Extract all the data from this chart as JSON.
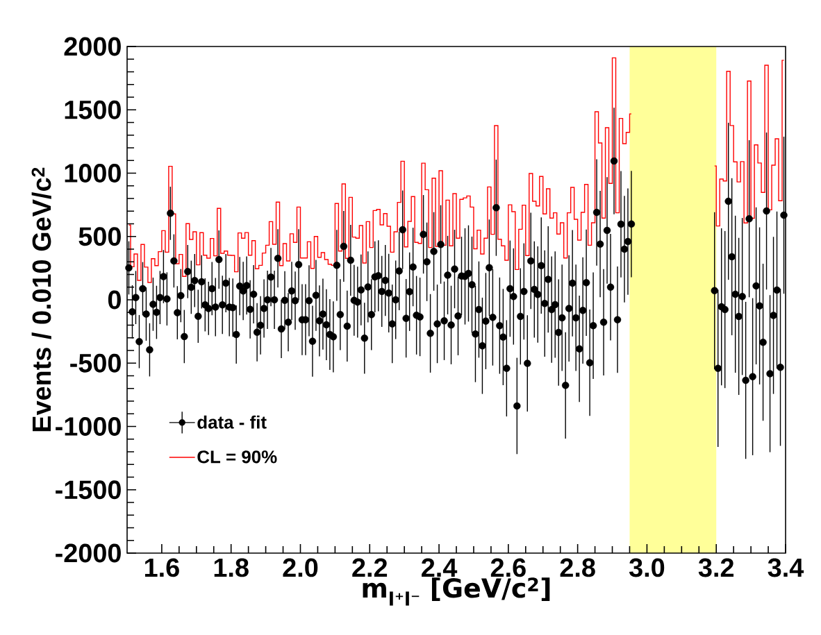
{
  "chart_data": {
    "type": "scatter",
    "xlabel": "m$_{l⁺l⁻}$ [GeV/c$^{2}$]",
    "ylabel": "Events / 0.010 GeV/c$^{2}$",
    "x": [
      1.505,
      1.515,
      1.525,
      1.535,
      1.545,
      1.555,
      1.565,
      1.575,
      1.585,
      1.595,
      1.605,
      1.615,
      1.625,
      1.635,
      1.645,
      1.655,
      1.665,
      1.675,
      1.685,
      1.695,
      1.705,
      1.715,
      1.725,
      1.735,
      1.745,
      1.755,
      1.765,
      1.775,
      1.785,
      1.795,
      1.805,
      1.815,
      1.825,
      1.835,
      1.845,
      1.855,
      1.865,
      1.875,
      1.885,
      1.895,
      1.905,
      1.915,
      1.925,
      1.935,
      1.945,
      1.955,
      1.965,
      1.975,
      1.985,
      1.995,
      2.005,
      2.015,
      2.025,
      2.035,
      2.045,
      2.055,
      2.065,
      2.075,
      2.085,
      2.095,
      2.105,
      2.115,
      2.125,
      2.135,
      2.145,
      2.155,
      2.165,
      2.175,
      2.185,
      2.195,
      2.205,
      2.215,
      2.225,
      2.235,
      2.245,
      2.255,
      2.265,
      2.275,
      2.285,
      2.295,
      2.305,
      2.315,
      2.325,
      2.335,
      2.345,
      2.355,
      2.365,
      2.375,
      2.385,
      2.395,
      2.405,
      2.415,
      2.425,
      2.435,
      2.445,
      2.455,
      2.465,
      2.475,
      2.485,
      2.495,
      2.505,
      2.515,
      2.525,
      2.535,
      2.545,
      2.555,
      2.565,
      2.575,
      2.585,
      2.595,
      2.605,
      2.615,
      2.625,
      2.635,
      2.645,
      2.655,
      2.665,
      2.675,
      2.685,
      2.695,
      2.705,
      2.715,
      2.725,
      2.735,
      2.745,
      2.755,
      2.765,
      2.775,
      2.785,
      2.795,
      2.805,
      2.815,
      2.825,
      2.835,
      2.845,
      2.855,
      2.865,
      2.875,
      2.885,
      2.895,
      2.905,
      2.915,
      2.925,
      2.935,
      2.945,
      2.955,
      2.965,
      2.975,
      2.985,
      2.995,
      3.005,
      3.015,
      3.025,
      3.035,
      3.045,
      3.055,
      3.065,
      3.075,
      3.085,
      3.095,
      3.105,
      3.115,
      3.125,
      3.135,
      3.145,
      3.155,
      3.165,
      3.175,
      3.185,
      3.195,
      3.205,
      3.215,
      3.225,
      3.235,
      3.245,
      3.255,
      3.265,
      3.275,
      3.285,
      3.295,
      3.305,
      3.315,
      3.325,
      3.335,
      3.345,
      3.355,
      3.365,
      3.375,
      3.385,
      3.395
    ],
    "series": [
      {
        "name": "data - fit",
        "color": "#000000",
        "marker": "circle",
        "values": [
          252,
          -95,
          18,
          -330,
          88,
          -113,
          -395,
          -35,
          -99,
          18,
          183,
          7,
          683,
          307,
          -102,
          33,
          -290,
          223,
          99,
          152,
          -130,
          142,
          -40,
          -68,
          88,
          -57,
          318,
          -40,
          131,
          -58,
          -62,
          -274,
          108,
          70,
          113,
          -75,
          44,
          -256,
          -201,
          -68,
          0,
          179,
          0,
          327,
          -230,
          -4,
          -177,
          70,
          -7,
          278,
          -157,
          -157,
          -7,
          -327,
          35,
          -166,
          -113,
          -197,
          -274,
          -292,
          272,
          -117,
          422,
          -208,
          312,
          -4,
          -18,
          78,
          -303,
          102,
          -117,
          181,
          190,
          66,
          153,
          53,
          -190,
          0,
          228,
          553,
          -146,
          64,
          259,
          -122,
          -135,
          517,
          300,
          -265,
          382,
          -190,
          437,
          -166,
          195,
          -199,
          243,
          -128,
          188,
          185,
          208,
          119,
          -270,
          -77,
          -363,
          -168,
          254,
          -139,
          727,
          -204,
          -294,
          -541,
          88,
          26,
          -838,
          -131,
          66,
          -502,
          307,
          82,
          42,
          270,
          -29,
          161,
          -77,
          -38,
          -258,
          -142,
          -676,
          -68,
          131,
          -142,
          -387,
          -84,
          135,
          -497,
          -204,
          690,
          440,
          -177,
          548,
          100,
          1096,
          -157,
          597,
          400,
          460,
          598,
          null,
          null,
          null,
          null,
          null,
          null,
          null,
          null,
          null,
          null,
          null,
          null,
          null,
          null,
          null,
          null,
          null,
          null,
          null,
          null,
          null,
          null,
          null,
          72,
          -541,
          -55,
          -77,
          778,
          340,
          44,
          -131,
          26,
          -636,
          640,
          -607,
          110,
          -48,
          -335,
          701,
          -583,
          -123,
          77,
          -533,
          668
        ],
        "errors": [
          210,
          210,
          210,
          210,
          210,
          210,
          210,
          210,
          210,
          210,
          210,
          210,
          210,
          210,
          210,
          210,
          210,
          210,
          210,
          210,
          210,
          210,
          210,
          210,
          210,
          230,
          230,
          230,
          230,
          230,
          230,
          230,
          230,
          230,
          230,
          230,
          230,
          230,
          230,
          230,
          230,
          230,
          230,
          230,
          230,
          230,
          230,
          230,
          230,
          280,
          280,
          280,
          280,
          280,
          280,
          280,
          280,
          280,
          280,
          280,
          280,
          280,
          280,
          280,
          280,
          280,
          280,
          280,
          280,
          280,
          280,
          280,
          280,
          280,
          280,
          310,
          310,
          310,
          310,
          310,
          310,
          310,
          310,
          310,
          310,
          310,
          310,
          310,
          310,
          310,
          310,
          310,
          310,
          310,
          310,
          310,
          310,
          380,
          380,
          380,
          380,
          380,
          380,
          380,
          380,
          380,
          380,
          380,
          380,
          380,
          380,
          380,
          380,
          380,
          380,
          380,
          380,
          380,
          380,
          380,
          420,
          420,
          420,
          420,
          420,
          420,
          420,
          420,
          420,
          420,
          420,
          420,
          420,
          420,
          420,
          420,
          420,
          420,
          420,
          420,
          420,
          420,
          420,
          420,
          420,
          420,
          null,
          null,
          null,
          null,
          null,
          null,
          null,
          null,
          null,
          null,
          null,
          null,
          null,
          null,
          null,
          null,
          null,
          null,
          null,
          null,
          null,
          null,
          null,
          620,
          620,
          620,
          620,
          620,
          620,
          620,
          620,
          620,
          620,
          620,
          620,
          620,
          620,
          620,
          620,
          620,
          620,
          620,
          620,
          620
        ]
      },
      {
        "name": "CL = 90%",
        "type": "step",
        "color": "#ff0000",
        "values": [
          590,
          261,
          362,
          153,
          437,
          258,
          137,
          325,
          270,
          380,
          546,
          376,
          1054,
          678,
          285,
          358,
          185,
          601,
          477,
          537,
          276,
          530,
          352,
          329,
          484,
          347,
          722,
          367,
          385,
          352,
          351,
          221,
          528,
          486,
          531,
          352,
          467,
          245,
          272,
          369,
          431,
          617,
          438,
          771,
          270,
          444,
          307,
          521,
          453,
          732,
          330,
          330,
          458,
          248,
          500,
          336,
          373,
          318,
          281,
          272,
          760,
          385,
          915,
          327,
          809,
          495,
          486,
          586,
          290,
          617,
          413,
          705,
          714,
          592,
          681,
          581,
          376,
          537,
          769,
          1094,
          418,
          619,
          815,
          453,
          445,
          1079,
          869,
          413,
          960,
          422,
          1019,
          431,
          787,
          426,
          838,
          486,
          793,
          805,
          820,
          732,
          403,
          550,
          362,
          486,
          891,
          517,
          1375,
          478,
          426,
          312,
          750,
          696,
          239,
          557,
          747,
          349,
          997,
          778,
          741,
          974,
          678,
          877,
          645,
          687,
          519,
          608,
          330,
          687,
          888,
          636,
          471,
          690,
          911,
          431,
          608,
          1485,
          1238,
          645,
          1359,
          919,
          1910,
          687,
          1432,
          1233,
          1322,
          1468,
          null,
          null,
          null,
          null,
          null,
          null,
          null,
          null,
          null,
          null,
          null,
          null,
          null,
          null,
          null,
          null,
          null,
          null,
          null,
          null,
          null,
          null,
          null,
          1057,
          583,
          953,
          938,
          1804,
          1376,
          1089,
          931,
          1091,
          607,
          1727,
          644,
          1223,
          1080,
          848,
          1852,
          710,
          1063,
          1271,
          782,
          1891
        ]
      }
    ],
    "xlim": [
      1.5,
      3.4
    ],
    "ylim": [
      -2000,
      2000
    ],
    "xticks": [
      1.6,
      1.8,
      {
        "value": 2,
        "label": "2.0"
      },
      2.2,
      2.4,
      2.6,
      2.8,
      {
        "value": 3,
        "label": "3.0"
      },
      3.2,
      3.4
    ],
    "yticks": [
      -2000,
      -1500,
      -1000,
      -500,
      0,
      500,
      1000,
      1500,
      2000
    ],
    "bands": [
      {
        "axis": "x",
        "from": 2.95,
        "to": 3.2,
        "color": "#ffff99"
      }
    ],
    "legend": "bottom left"
  }
}
